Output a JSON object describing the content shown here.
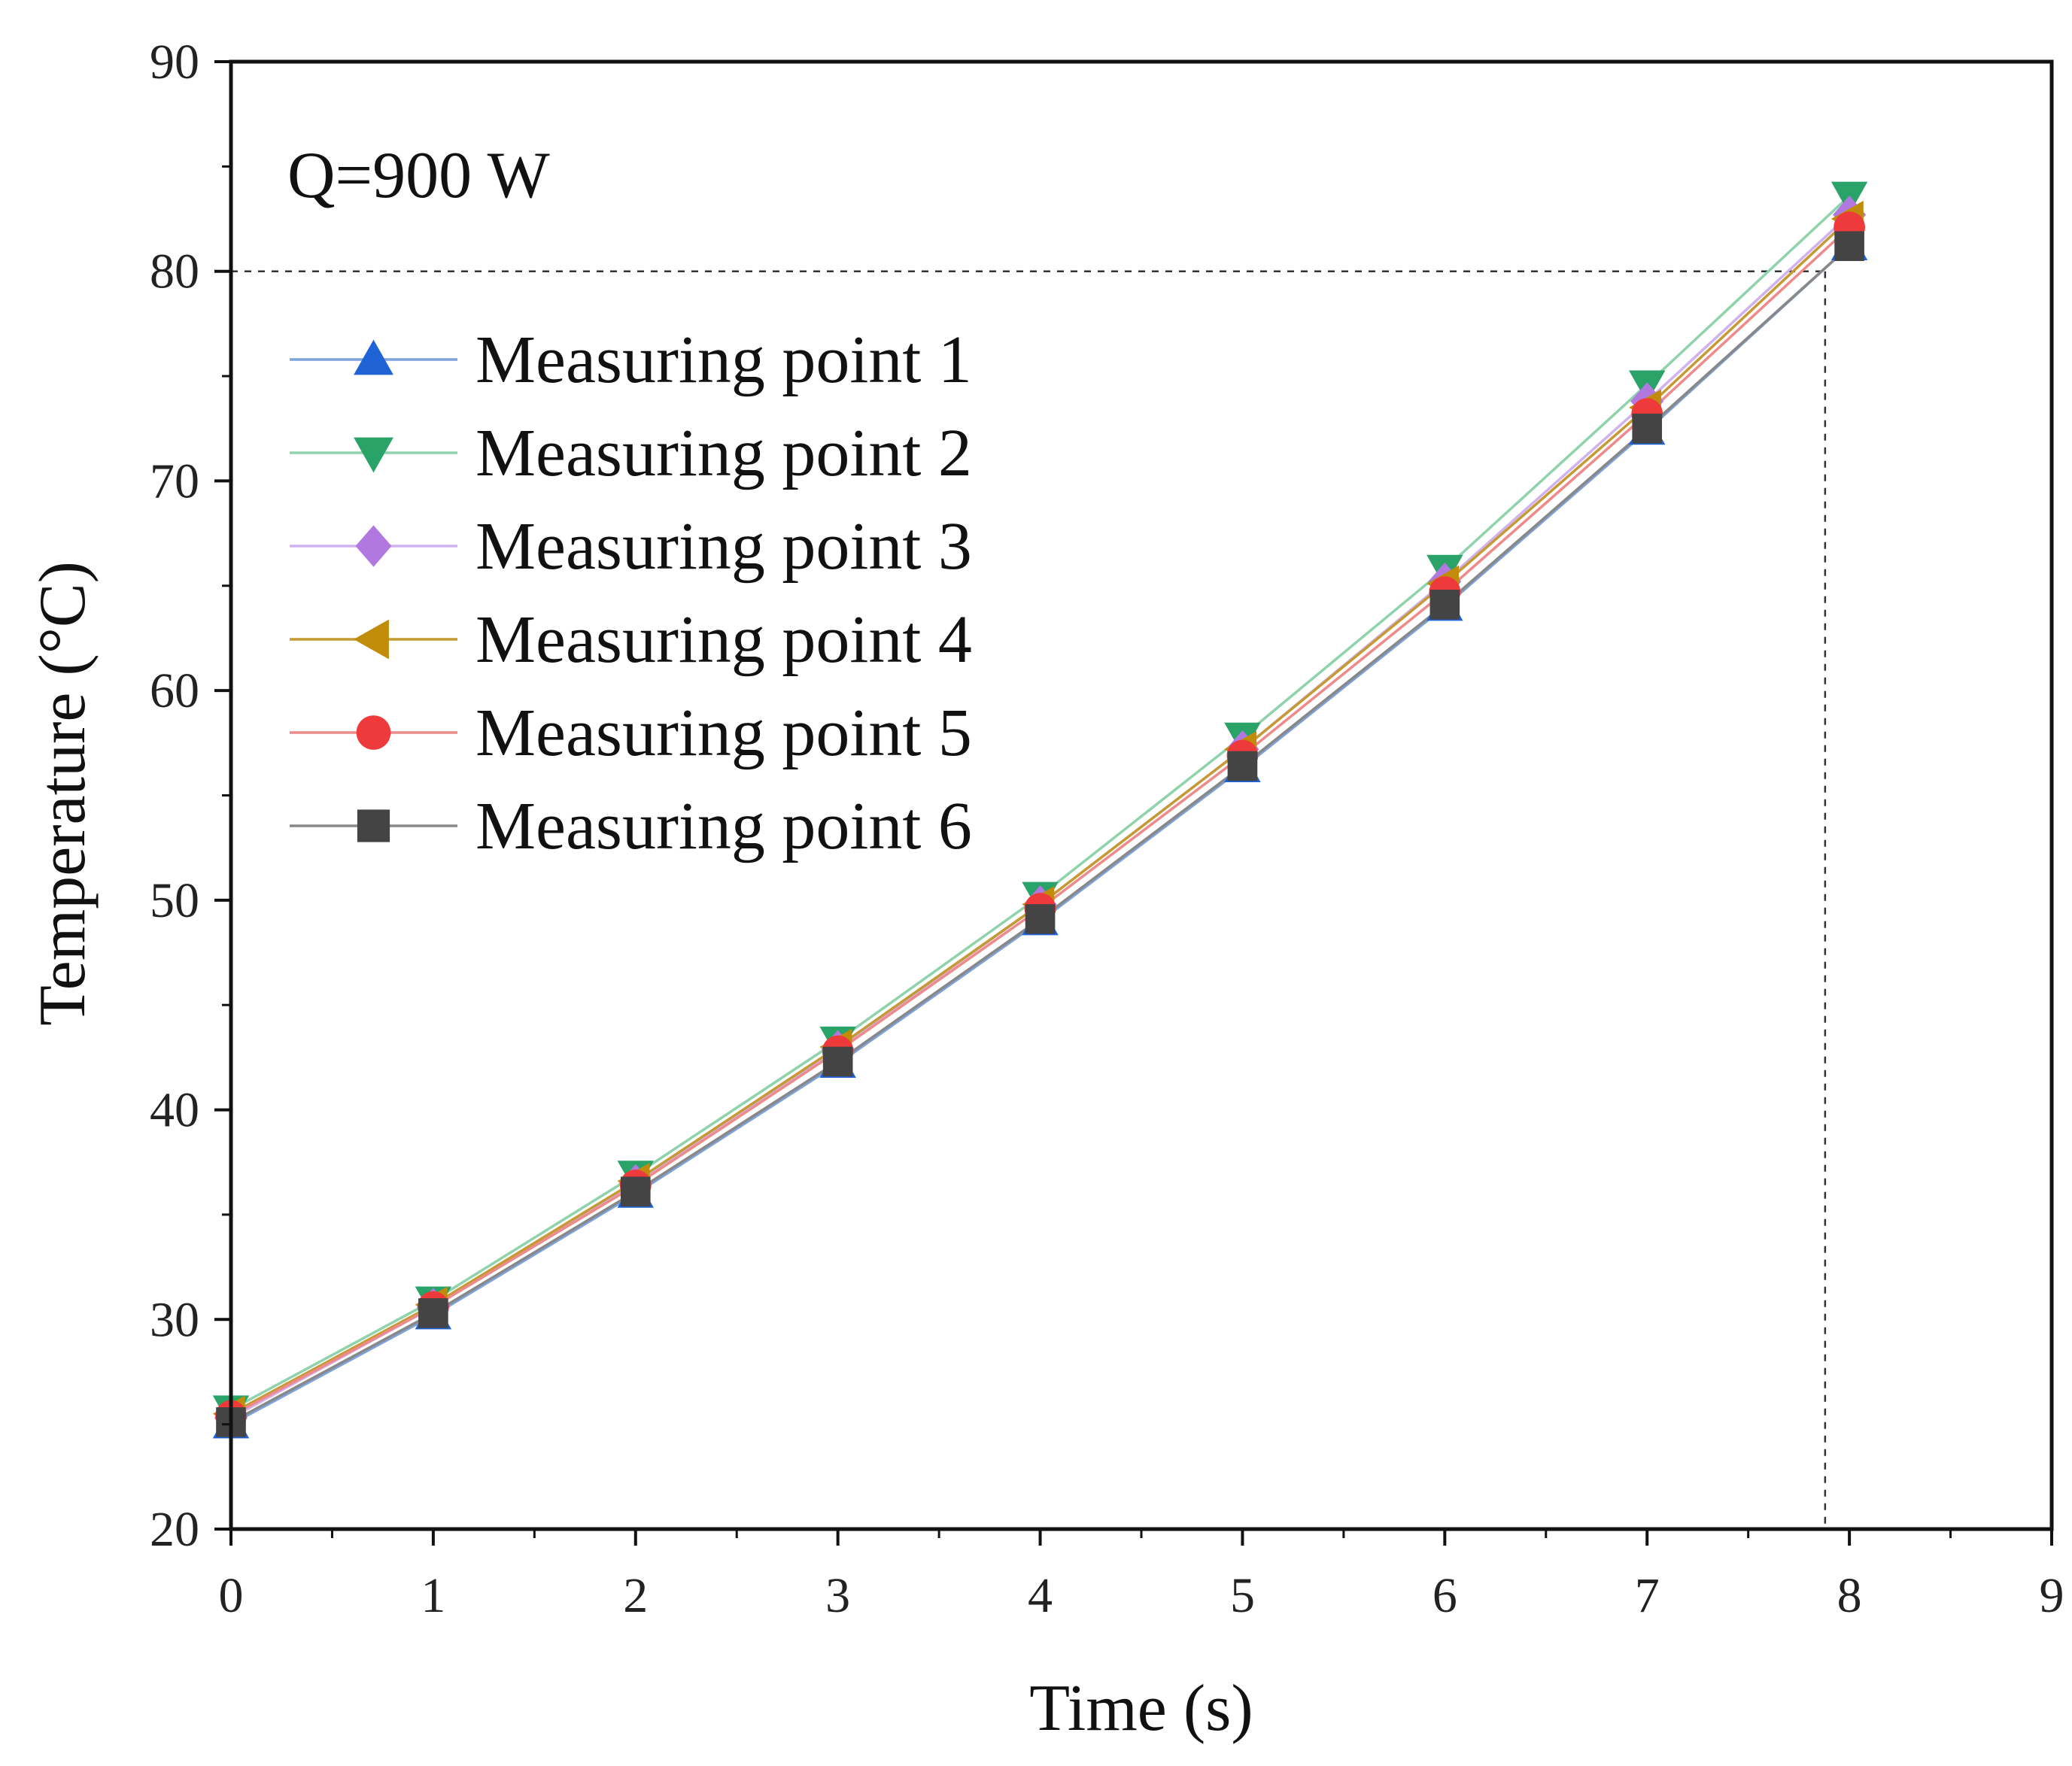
{
  "chart_data": {
    "type": "line",
    "title": "",
    "annotation": "Q=900 W",
    "xlabel": "Time (s)",
    "ylabel": "Temperature (°C)",
    "xlim": [
      0,
      9
    ],
    "ylim": [
      20,
      90
    ],
    "xticks": [
      0,
      1,
      2,
      3,
      4,
      5,
      6,
      7,
      8,
      9
    ],
    "yticks": [
      20,
      30,
      40,
      50,
      60,
      70,
      80,
      90
    ],
    "reference_lines": {
      "y": 80,
      "x": 7.88
    },
    "legend_position": "top-left",
    "x": [
      0,
      1,
      2,
      3,
      4,
      5,
      6,
      7,
      8
    ],
    "series": [
      {
        "name": "Measuring point 1",
        "marker": "triangle-up",
        "color": "#1f63d6",
        "line_color": "#7da2dd",
        "values": [
          25.0,
          30.2,
          36.0,
          42.2,
          49.0,
          56.3,
          64.0,
          72.4,
          81.2
        ]
      },
      {
        "name": "Measuring point 2",
        "marker": "triangle-down",
        "color": "#2aa368",
        "line_color": "#8fd3ad",
        "values": [
          25.7,
          30.9,
          36.9,
          43.3,
          50.2,
          57.8,
          65.8,
          74.6,
          83.6
        ]
      },
      {
        "name": "Measuring point 3",
        "marker": "diamond",
        "color": "#b178e0",
        "line_color": "#d1b2ee",
        "values": [
          25.3,
          30.6,
          36.5,
          42.9,
          49.8,
          57.2,
          65.2,
          73.8,
          82.7
        ]
      },
      {
        "name": "Measuring point 4",
        "marker": "triangle-left",
        "color": "#c08c0a",
        "line_color": "#c59a32",
        "values": [
          25.5,
          30.7,
          36.6,
          43.0,
          49.8,
          57.2,
          65.1,
          73.5,
          82.5
        ]
      },
      {
        "name": "Measuring point 5",
        "marker": "circle",
        "color": "#ee3a3a",
        "line_color": "#ee8a8a",
        "values": [
          25.4,
          30.6,
          36.4,
          42.8,
          49.6,
          56.9,
          64.7,
          73.2,
          82.1
        ]
      },
      {
        "name": "Measuring point 6",
        "marker": "square",
        "color": "#444444",
        "line_color": "#888888",
        "values": [
          25.1,
          30.3,
          36.1,
          42.3,
          49.1,
          56.4,
          64.1,
          72.5,
          81.2
        ]
      }
    ]
  }
}
